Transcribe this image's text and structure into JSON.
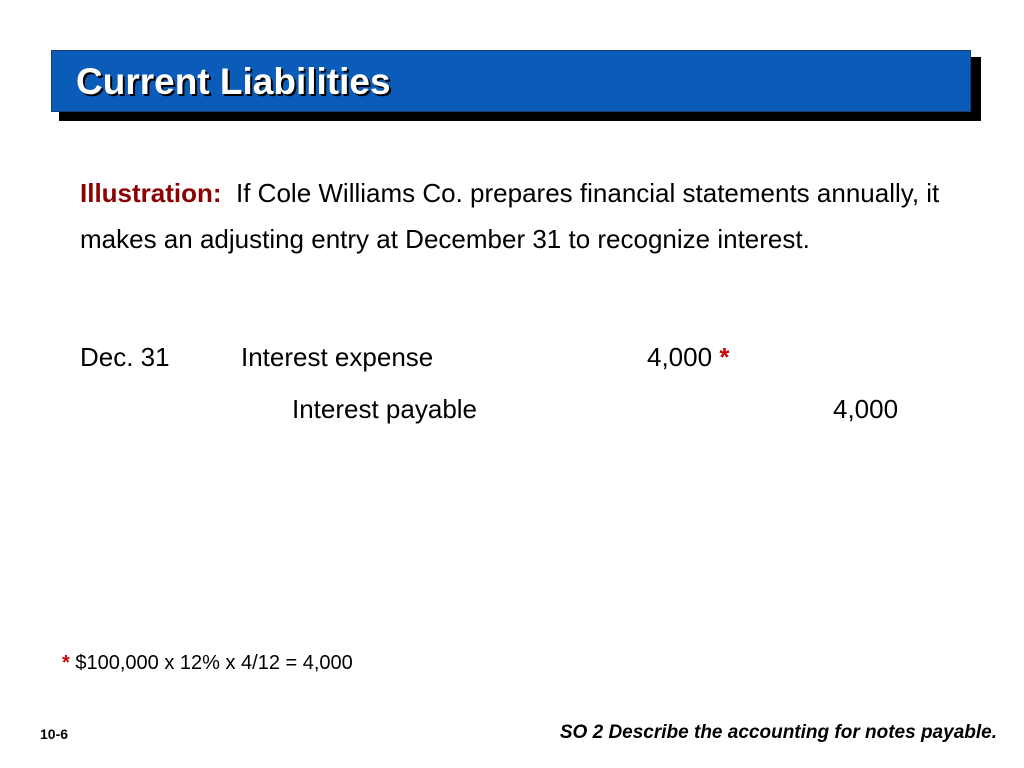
{
  "title": "Current Liabilities",
  "illustration": {
    "label": "Illustration:",
    "text": "If Cole Williams Co. prepares financial statements annually, it makes an adjusting entry at December 31 to recognize interest."
  },
  "journal_entry": {
    "date": "Dec. 31",
    "debit_account": "Interest expense",
    "debit_amount": "4,000",
    "debit_marker": "*",
    "credit_account": "Interest payable",
    "credit_amount": "4,000"
  },
  "footnote": {
    "marker": "*",
    "text": "$100,000 x 12% x 4/12 = 4,000"
  },
  "footer": {
    "slide_number": "10-6",
    "objective": "SO 2  Describe the accounting for notes payable."
  },
  "colors": {
    "title_bar": "#0a5cb8",
    "illustration_label": "#8b0000",
    "asterisk": "#cc0000"
  }
}
